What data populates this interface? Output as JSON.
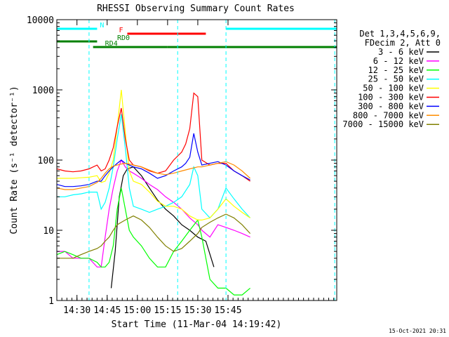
{
  "chart_data": {
    "type": "line",
    "title": "RHESSI Observing Summary Count Rates",
    "xlabel": "Start Time (11-Mar-04 14:19:42)",
    "ylabel": "Count Rate (s⁻¹ detector⁻¹)",
    "y_scale": "log",
    "ylim": [
      1,
      10000
    ],
    "xlim_min": [
      20,
      159
    ],
    "x_ticks": [
      {
        "min": 30,
        "label": "14:30"
      },
      {
        "min": 45,
        "label": "14:45"
      },
      {
        "min": 60,
        "label": "15:00"
      },
      {
        "min": 75,
        "label": "15:15"
      },
      {
        "min": 90,
        "label": "15:30"
      },
      {
        "min": 105,
        "label": "15:45"
      }
    ],
    "y_ticks": [
      {
        "value": 1,
        "label": "1"
      },
      {
        "value": 10,
        "label": "10"
      },
      {
        "value": 100,
        "label": "100"
      },
      {
        "value": 1000,
        "label": "1000"
      },
      {
        "value": 10000,
        "label": "10000"
      }
    ],
    "legend_header": [
      "Det 1,3,4,5,6,9,",
      "FDecim 2, Att 0"
    ],
    "series": [
      {
        "name": "3 - 6 keV",
        "color": "#000000",
        "x": [
          20,
          40,
          42,
          45,
          47,
          49,
          51,
          53,
          55,
          58,
          62,
          66,
          70,
          74,
          78,
          82,
          86,
          90,
          94,
          98,
          104,
          108,
          112,
          116
        ],
        "y": [
          0,
          0,
          0,
          0,
          1.5,
          5,
          30,
          60,
          75,
          80,
          60,
          40,
          27,
          20,
          16,
          12,
          10,
          8,
          7,
          3,
          0,
          0,
          0,
          0
        ]
      },
      {
        "name": "6 - 12 keV",
        "color": "#ff00ff",
        "x": [
          20,
          24,
          28,
          32,
          36,
          40,
          42,
          44,
          46,
          48,
          50,
          52,
          54,
          56,
          58,
          62,
          66,
          70,
          74,
          78,
          82,
          86,
          90,
          92,
          96,
          100,
          104,
          108,
          112,
          116
        ],
        "y": [
          5,
          5,
          4,
          4,
          4,
          3,
          3,
          8,
          20,
          40,
          70,
          100,
          80,
          70,
          65,
          55,
          45,
          38,
          30,
          25,
          20,
          15,
          12,
          10,
          8,
          12,
          11,
          10,
          9,
          8
        ]
      },
      {
        "name": "12 - 25 keV",
        "color": "#00ff00",
        "x": [
          20,
          24,
          28,
          32,
          36,
          40,
          42,
          44,
          46,
          48,
          50,
          52,
          54,
          56,
          58,
          62,
          66,
          70,
          74,
          78,
          82,
          86,
          90,
          92,
          96,
          100,
          104,
          108,
          112,
          116
        ],
        "y": [
          4.5,
          5,
          4.5,
          4,
          4,
          3.5,
          3,
          3,
          3.5,
          6,
          20,
          40,
          20,
          10,
          8,
          6,
          4,
          3,
          3,
          5,
          7,
          10,
          14,
          8,
          2,
          1.5,
          1.5,
          1.2,
          1.2,
          1.5
        ]
      },
      {
        "name": "25 - 50 keV",
        "color": "#00ffff",
        "x": [
          20,
          24,
          28,
          32,
          36,
          40,
          42,
          44,
          46,
          48,
          50,
          52,
          54,
          56,
          58,
          62,
          66,
          70,
          74,
          78,
          82,
          86,
          88,
          90,
          92,
          96,
          100,
          104,
          108,
          112,
          116
        ],
        "y": [
          30,
          30,
          32,
          33,
          35,
          35,
          20,
          25,
          40,
          80,
          200,
          450,
          150,
          40,
          22,
          20,
          18,
          20,
          22,
          25,
          30,
          45,
          80,
          60,
          20,
          15,
          20,
          40,
          28,
          20,
          15
        ]
      },
      {
        "name": "50 - 100 keV",
        "color": "#ffff00",
        "x": [
          20,
          24,
          28,
          32,
          36,
          40,
          42,
          44,
          46,
          48,
          50,
          52,
          54,
          56,
          58,
          62,
          66,
          70,
          74,
          78,
          82,
          86,
          88,
          90,
          92,
          96,
          100,
          104,
          108,
          112,
          116
        ],
        "y": [
          55,
          55,
          55,
          56,
          57,
          60,
          48,
          50,
          65,
          100,
          300,
          1000,
          250,
          70,
          50,
          45,
          35,
          26,
          22,
          22,
          20,
          16,
          15,
          14,
          14,
          15,
          20,
          28,
          22,
          18,
          15
        ]
      },
      {
        "name": "100 - 300 keV",
        "color": "#ff0000",
        "x": [
          20,
          24,
          28,
          32,
          36,
          40,
          42,
          44,
          46,
          48,
          50,
          52,
          54,
          56,
          58,
          62,
          66,
          70,
          74,
          78,
          82,
          84,
          86,
          88,
          90,
          92,
          96,
          100,
          104,
          108,
          112,
          116
        ],
        "y": [
          75,
          70,
          68,
          70,
          75,
          85,
          70,
          75,
          100,
          150,
          300,
          550,
          200,
          100,
          85,
          80,
          70,
          65,
          70,
          100,
          130,
          170,
          280,
          900,
          800,
          100,
          85,
          90,
          90,
          70,
          60,
          50
        ]
      },
      {
        "name": "300 - 800 keV",
        "color": "#0000ff",
        "x": [
          20,
          24,
          28,
          32,
          36,
          40,
          42,
          44,
          46,
          48,
          50,
          52,
          54,
          56,
          58,
          62,
          66,
          70,
          74,
          78,
          82,
          84,
          86,
          88,
          90,
          92,
          96,
          100,
          104,
          108,
          112,
          116
        ],
        "y": [
          45,
          42,
          42,
          43,
          45,
          50,
          50,
          60,
          70,
          80,
          90,
          100,
          90,
          85,
          80,
          75,
          65,
          55,
          60,
          70,
          80,
          90,
          110,
          240,
          130,
          85,
          90,
          95,
          85,
          70,
          60,
          52
        ]
      },
      {
        "name": "800 - 7000 keV",
        "color": "#ff8c00",
        "x": [
          20,
          24,
          28,
          32,
          36,
          40,
          42,
          44,
          46,
          48,
          50,
          52,
          54,
          56,
          58,
          62,
          66,
          70,
          74,
          78,
          82,
          86,
          90,
          92,
          96,
          100,
          104,
          108,
          112,
          116
        ],
        "y": [
          40,
          38,
          38,
          40,
          42,
          48,
          55,
          65,
          75,
          82,
          85,
          88,
          90,
          88,
          85,
          80,
          72,
          65,
          62,
          65,
          70,
          75,
          80,
          80,
          85,
          90,
          95,
          85,
          70,
          55
        ]
      },
      {
        "name": "7000 - 15000 keV",
        "color": "#808000",
        "x": [
          20,
          24,
          28,
          32,
          36,
          40,
          42,
          44,
          46,
          48,
          50,
          52,
          54,
          56,
          58,
          62,
          66,
          70,
          74,
          78,
          82,
          86,
          90,
          92,
          96,
          100,
          104,
          108,
          112,
          116
        ],
        "y": [
          4,
          4,
          4,
          4.5,
          5,
          5.5,
          6,
          7,
          8,
          10,
          12,
          13,
          14,
          15,
          16,
          14,
          11,
          8,
          6,
          5,
          5.5,
          7,
          9,
          11,
          13,
          15,
          17,
          15,
          12,
          9
        ]
      }
    ],
    "dashed_markers_min": [
      36,
      80,
      104,
      158
    ],
    "observing_bars": [
      {
        "label": "N",
        "color": "#00ffff",
        "segments": [
          [
            20,
            40
          ],
          [
            104,
            159
          ]
        ]
      },
      {
        "label": "F",
        "color": "#ff0000",
        "segments": [
          [
            55,
            94
          ]
        ]
      },
      {
        "label": "RD0",
        "color": "#008000",
        "segments": [
          [
            20,
            40
          ]
        ]
      },
      {
        "label": "RD4",
        "color": "#008000",
        "segments": [
          [
            38,
            75
          ],
          [
            75,
            104
          ],
          [
            104,
            159
          ]
        ]
      }
    ],
    "timestamp": "15-Oct-2021 20:31"
  }
}
